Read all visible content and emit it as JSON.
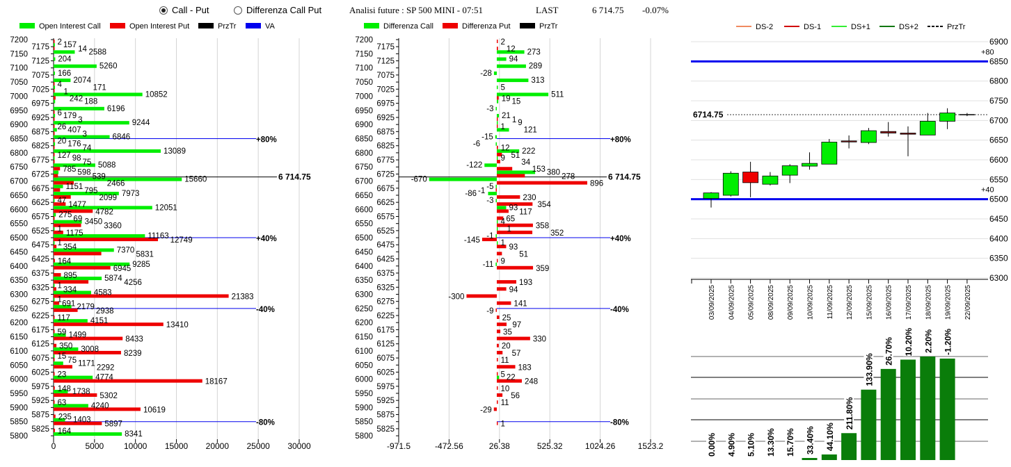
{
  "header": {
    "radio_call_put": {
      "label": "Call - Put",
      "selected": true
    },
    "radio_diff": {
      "label": "Differenza Call Put",
      "selected": false
    },
    "title": "Analisi future : SP 500 MINI - 07:51",
    "last_label": "LAST",
    "last_value": "6 714.75",
    "change": "-0.07%"
  },
  "colors": {
    "call": "#00ee00",
    "put": "#ee0000",
    "przTr": "#000000",
    "va": "#0000ee",
    "ds_minus2": "#f08a60",
    "ds_minus1": "#d00000",
    "ds_plus1": "#33ee33",
    "ds_plus2": "#117711",
    "volume_bar": "#0a7d0a"
  },
  "chart_data": [
    {
      "type": "bar",
      "orientation": "horizontal",
      "legend": [
        "Open Interest Call",
        "Open Interest Put",
        "PrzTr",
        "VA"
      ],
      "xlim": [
        0,
        30000
      ],
      "xticks": [
        "0",
        "5000",
        "10000",
        "15000",
        "20000",
        "25000",
        "30000"
      ],
      "grid": true,
      "przTr": {
        "value": 6714.75,
        "label": "6 714.75"
      },
      "va_levels": [
        {
          "strike": 6850,
          "label": "+80%"
        },
        {
          "strike": 6500,
          "label": "+40%"
        },
        {
          "strike": 6250,
          "label": "-40%"
        },
        {
          "strike": 5850,
          "label": "-80%"
        }
      ],
      "rows": [
        {
          "strike": 7200,
          "call": null,
          "put": 2
        },
        {
          "strike": 7175,
          "call": 157,
          "put": 14
        },
        {
          "strike": 7150,
          "call": 2588,
          "put": null
        },
        {
          "strike": 7125,
          "call": 204,
          "put": null
        },
        {
          "strike": 7100,
          "call": 5260,
          "put": null
        },
        {
          "strike": 7075,
          "call": 166,
          "put": null
        },
        {
          "strike": 7050,
          "call": 2074,
          "put": 4
        },
        {
          "strike": 7025,
          "call": 171,
          "put": 1
        },
        {
          "strike": 7000,
          "call": 10852,
          "put": 242
        },
        {
          "strike": 6975,
          "call": 188,
          "put": null
        },
        {
          "strike": 6950,
          "call": 6196,
          "put": 6
        },
        {
          "strike": 6925,
          "call": 179,
          "put": 3
        },
        {
          "strike": 6900,
          "call": 9244,
          "put": 26
        },
        {
          "strike": 6875,
          "call": 407,
          "put": 3
        },
        {
          "strike": 6850,
          "call": 6846,
          "put": 20
        },
        {
          "strike": 6825,
          "call": 176,
          "put": 74
        },
        {
          "strike": 6800,
          "call": 13089,
          "put": 127
        },
        {
          "strike": 6775,
          "call": 98,
          "put": 75
        },
        {
          "strike": 6750,
          "call": 5088,
          "put": 785
        },
        {
          "strike": 6725,
          "call": 598,
          "put": 539
        },
        {
          "strike": 6700,
          "call": 15660,
          "put": 2466
        },
        {
          "strike": 6675,
          "call": 1151,
          "put": 795
        },
        {
          "strike": 6650,
          "call": 7973,
          "put": 2099
        },
        {
          "strike": 6625,
          "call": 47,
          "put": 1477
        },
        {
          "strike": 6600,
          "call": 12051,
          "put": 4782
        },
        {
          "strike": 6575,
          "call": 275,
          "put": 69
        },
        {
          "strike": 6550,
          "call": 3450,
          "put": 3360
        },
        {
          "strike": 6525,
          "call": 1,
          "put": 1175
        },
        {
          "strike": 6500,
          "call": 11163,
          "put": 12749
        },
        {
          "strike": 6475,
          "call": 1,
          "put": 354
        },
        {
          "strike": 6450,
          "call": 7370,
          "put": 5831
        },
        {
          "strike": 6425,
          "call": null,
          "put": 164
        },
        {
          "strike": 6400,
          "call": 9285,
          "put": 6945
        },
        {
          "strike": 6375,
          "call": null,
          "put": 895
        },
        {
          "strike": 6350,
          "call": 5874,
          "put": 4256
        },
        {
          "strike": 6325,
          "call": 1,
          "put": 334
        },
        {
          "strike": 6300,
          "call": 4583,
          "put": 21383
        },
        {
          "strike": 6275,
          "call": 1,
          "put": 691
        },
        {
          "strike": 6250,
          "call": 2179,
          "put": 2938
        },
        {
          "strike": 6225,
          "call": null,
          "put": 117
        },
        {
          "strike": 6200,
          "call": 4151,
          "put": 13410
        },
        {
          "strike": 6175,
          "call": null,
          "put": 59
        },
        {
          "strike": 6150,
          "call": 1499,
          "put": 8433
        },
        {
          "strike": 6125,
          "call": null,
          "put": 350
        },
        {
          "strike": 6100,
          "call": 3008,
          "put": 8239
        },
        {
          "strike": 6075,
          "call": 15,
          "put": 75
        },
        {
          "strike": 6050,
          "call": 1171,
          "put": 2292
        },
        {
          "strike": 6025,
          "call": null,
          "put": 23
        },
        {
          "strike": 6000,
          "call": 4774,
          "put": 18167
        },
        {
          "strike": 5975,
          "call": null,
          "put": 148
        },
        {
          "strike": 5950,
          "call": 1738,
          "put": 5302
        },
        {
          "strike": 5925,
          "call": null,
          "put": 63
        },
        {
          "strike": 5900,
          "call": 4240,
          "put": 10619
        },
        {
          "strike": 5875,
          "call": null,
          "put": 235
        },
        {
          "strike": 5850,
          "call": 1403,
          "put": 5897
        },
        {
          "strike": 5825,
          "call": null,
          "put": 164
        },
        {
          "strike": 5800,
          "call": 8341,
          "put": null
        }
      ]
    },
    {
      "type": "bar",
      "orientation": "horizontal",
      "legend": [
        "Differenza Call",
        "Differenza Put",
        "PrzTr"
      ],
      "xlim": [
        -971.5,
        1523.2
      ],
      "xticks": [
        "-971.5",
        "-472.56",
        "26.38",
        "525.32",
        "1024.26",
        "1523.2"
      ],
      "grid": true,
      "przTr": {
        "value": 6714.75,
        "label": "6 714.75"
      },
      "va_levels": [
        {
          "strike": 6850,
          "label": "+80%"
        },
        {
          "strike": 6500,
          "label": "+40%"
        },
        {
          "strike": 6250,
          "label": "-40%"
        },
        {
          "strike": 5850,
          "label": "-80%"
        }
      ],
      "rows": [
        {
          "strike": 7200,
          "call": null,
          "put": 2
        },
        {
          "strike": 7175,
          "call": null,
          "put": 12
        },
        {
          "strike": 7150,
          "call": 273,
          "put": null
        },
        {
          "strike": 7125,
          "call": 94,
          "put": null
        },
        {
          "strike": 7100,
          "call": 289,
          "put": null
        },
        {
          "strike": 7075,
          "call": -28,
          "put": null
        },
        {
          "strike": 7050,
          "call": 313,
          "put": null
        },
        {
          "strike": 7025,
          "call": 5,
          "put": null
        },
        {
          "strike": 7000,
          "call": 511,
          "put": 19
        },
        {
          "strike": 6975,
          "call": 15,
          "put": null
        },
        {
          "strike": 6950,
          "call": -3,
          "put": null
        },
        {
          "strike": 6925,
          "call": 21,
          "put": 1
        },
        {
          "strike": 6900,
          "call": 9,
          "put": 1
        },
        {
          "strike": 6875,
          "call": 121,
          "put": null
        },
        {
          "strike": 6850,
          "call": -15,
          "put": null
        },
        {
          "strike": 6825,
          "call": -6,
          "put": 12
        },
        {
          "strike": 6800,
          "call": 222,
          "put": 51
        },
        {
          "strike": 6775,
          "call": 9,
          "put": 34
        },
        {
          "strike": 6750,
          "call": -122,
          "put": 153
        },
        {
          "strike": 6725,
          "call": 380,
          "put": 278
        },
        {
          "strike": 6700,
          "call": -670,
          "put": 896
        },
        {
          "strike": 6675,
          "call": -5,
          "put": -1
        },
        {
          "strike": 6650,
          "call": -86,
          "put": 230
        },
        {
          "strike": 6625,
          "call": -3,
          "put": 354
        },
        {
          "strike": 6600,
          "call": 93,
          "put": 117
        },
        {
          "strike": 6575,
          "call": null,
          "put": 65
        },
        {
          "strike": 6550,
          "call": 4,
          "put": 358
        },
        {
          "strike": 6525,
          "call": 1,
          "put": 352
        },
        {
          "strike": 6500,
          "call": -1,
          "put": -145
        },
        {
          "strike": 6475,
          "call": 1,
          "put": 93
        },
        {
          "strike": 6450,
          "call": null,
          "put": 51
        },
        {
          "strike": 6425,
          "call": null,
          "put": 9
        },
        {
          "strike": 6400,
          "call": -11,
          "put": 359
        },
        {
          "strike": 6375,
          "call": null,
          "put": null
        },
        {
          "strike": 6350,
          "call": null,
          "put": 193
        },
        {
          "strike": 6325,
          "call": null,
          "put": 94
        },
        {
          "strike": 6300,
          "call": null,
          "put": -300
        },
        {
          "strike": 6275,
          "call": null,
          "put": 141
        },
        {
          "strike": 6250,
          "call": null,
          "put": -9
        },
        {
          "strike": 6225,
          "call": null,
          "put": 25
        },
        {
          "strike": 6200,
          "call": null,
          "put": 97
        },
        {
          "strike": 6175,
          "call": null,
          "put": 35
        },
        {
          "strike": 6150,
          "call": null,
          "put": 330
        },
        {
          "strike": 6125,
          "call": null,
          "put": 20
        },
        {
          "strike": 6100,
          "call": null,
          "put": 57
        },
        {
          "strike": 6075,
          "call": null,
          "put": 11
        },
        {
          "strike": 6050,
          "call": null,
          "put": 183
        },
        {
          "strike": 6025,
          "call": null,
          "put": 5
        },
        {
          "strike": 6000,
          "call": 22,
          "put": 248
        },
        {
          "strike": 5975,
          "call": null,
          "put": 10
        },
        {
          "strike": 5950,
          "call": null,
          "put": 56
        },
        {
          "strike": 5925,
          "call": null,
          "put": 11
        },
        {
          "strike": 5900,
          "call": null,
          "put": -29
        },
        {
          "strike": 5875,
          "call": null,
          "put": null
        },
        {
          "strike": 5850,
          "call": null,
          "put": 1
        },
        {
          "strike": 5825,
          "call": null,
          "put": null
        },
        {
          "strike": 5800,
          "call": null,
          "put": null
        }
      ]
    },
    {
      "type": "candlestick",
      "legend": [
        "DS-2",
        "DS-1",
        "DS+1",
        "DS+2",
        "PrzTr"
      ],
      "ylim": [
        6300,
        6900
      ],
      "yticks": [
        "6900",
        "6850",
        "6800",
        "6750",
        "6700",
        "6650",
        "6600",
        "6550",
        "6500",
        "6450",
        "6400",
        "6350",
        "6300"
      ],
      "grid": true,
      "przTr": {
        "value": 6714.75,
        "label": "6714.75"
      },
      "levels": [
        {
          "value": 6850,
          "label": "+80"
        },
        {
          "value": 6500,
          "label": "+40"
        }
      ],
      "candles": [
        {
          "date": "03/09/2025",
          "open": 6502,
          "high": 6518,
          "low": 6479,
          "close": 6516
        },
        {
          "date": "04/09/2025",
          "open": 6510,
          "high": 6571,
          "low": 6507,
          "close": 6566
        },
        {
          "date": "05/09/2025",
          "open": 6569,
          "high": 6595,
          "low": 6505,
          "close": 6542
        },
        {
          "date": "08/09/2025",
          "open": 6538,
          "high": 6569,
          "low": 6535,
          "close": 6559
        },
        {
          "date": "09/09/2025",
          "open": 6561,
          "high": 6589,
          "low": 6541,
          "close": 6585
        },
        {
          "date": "10/09/2025",
          "open": 6584,
          "high": 6619,
          "low": 6575,
          "close": 6591
        },
        {
          "date": "11/09/2025",
          "open": 6589,
          "high": 6653,
          "low": 6589,
          "close": 6645
        },
        {
          "date": "12/09/2025",
          "open": 6648,
          "high": 6662,
          "low": 6629,
          "close": 6646
        },
        {
          "date": "15/09/2025",
          "open": 6644,
          "high": 6681,
          "low": 6640,
          "close": 6674
        },
        {
          "date": "16/09/2025",
          "open": 6672,
          "high": 6696,
          "low": 6659,
          "close": 6668
        },
        {
          "date": "17/09/2025",
          "open": 6668,
          "high": 6685,
          "low": 6609,
          "close": 6665
        },
        {
          "date": "18/09/2025",
          "open": 6663,
          "high": 6719,
          "low": 6663,
          "close": 6698
        },
        {
          "date": "19/09/2025",
          "open": 6698,
          "high": 6731,
          "low": 6678,
          "close": 6719
        },
        {
          "date": "22/09/2025",
          "open": 6716,
          "high": 6719,
          "low": 6711,
          "close": 6714.75
        }
      ]
    },
    {
      "type": "bar",
      "labels": [
        "0.00%",
        "4.90%",
        "5.10%",
        "13.30%",
        "15.70%",
        "33.40%",
        "44.10%",
        "211.80%",
        "133.90%",
        "26.70%",
        "10.20%",
        "2.20%",
        "-1.20%"
      ],
      "relative_level": [
        0,
        0,
        0,
        0,
        0,
        2,
        5.4,
        26,
        68,
        88,
        97,
        100,
        98
      ],
      "grid": true
    }
  ]
}
